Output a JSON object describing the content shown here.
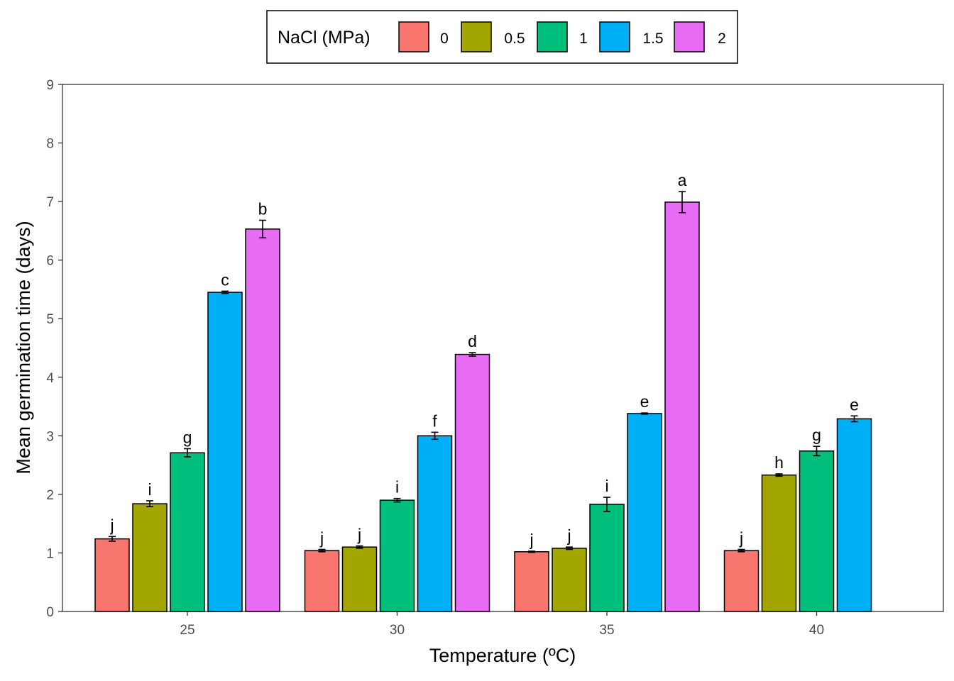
{
  "chart_data": {
    "type": "bar",
    "title": "",
    "xlabel": "Temperature (ºC)",
    "ylabel": "Mean germination time (days)",
    "ylim": [
      0,
      9
    ],
    "yticks": [
      "0",
      "1",
      "2",
      "3",
      "4",
      "5",
      "6",
      "7",
      "8",
      "9"
    ],
    "categories": [
      "25",
      "30",
      "35",
      "40"
    ],
    "legend": {
      "title": "NaCl (MPa)",
      "position": "top"
    },
    "grid": false,
    "series": [
      {
        "name": "0",
        "color": "#F8766D",
        "values": [
          1.24,
          1.04,
          1.02,
          1.04
        ],
        "errors": [
          0.04,
          0.02,
          0.01,
          0.02
        ],
        "labels": [
          "j",
          "j",
          "j",
          "j"
        ]
      },
      {
        "name": "0.5",
        "color": "#A3A500",
        "values": [
          1.84,
          1.1,
          1.08,
          2.33
        ],
        "errors": [
          0.05,
          0.02,
          0.02,
          0.02
        ],
        "labels": [
          "i",
          "j",
          "j",
          "h"
        ]
      },
      {
        "name": "1",
        "color": "#00BF7D",
        "values": [
          2.71,
          1.9,
          1.83,
          2.74
        ],
        "errors": [
          0.07,
          0.03,
          0.12,
          0.08
        ],
        "labels": [
          "g",
          "i",
          "i",
          "g"
        ]
      },
      {
        "name": "1.5",
        "color": "#00B0F6",
        "values": [
          5.45,
          3.0,
          3.38,
          3.29
        ],
        "errors": [
          0.02,
          0.06,
          0.01,
          0.05
        ],
        "labels": [
          "c",
          "f",
          "e",
          "e"
        ]
      },
      {
        "name": "2",
        "color": "#E76BF3",
        "values": [
          6.53,
          4.39,
          6.99,
          null
        ],
        "errors": [
          0.15,
          0.03,
          0.18,
          null
        ],
        "labels": [
          "b",
          "d",
          "a",
          ""
        ]
      }
    ]
  }
}
